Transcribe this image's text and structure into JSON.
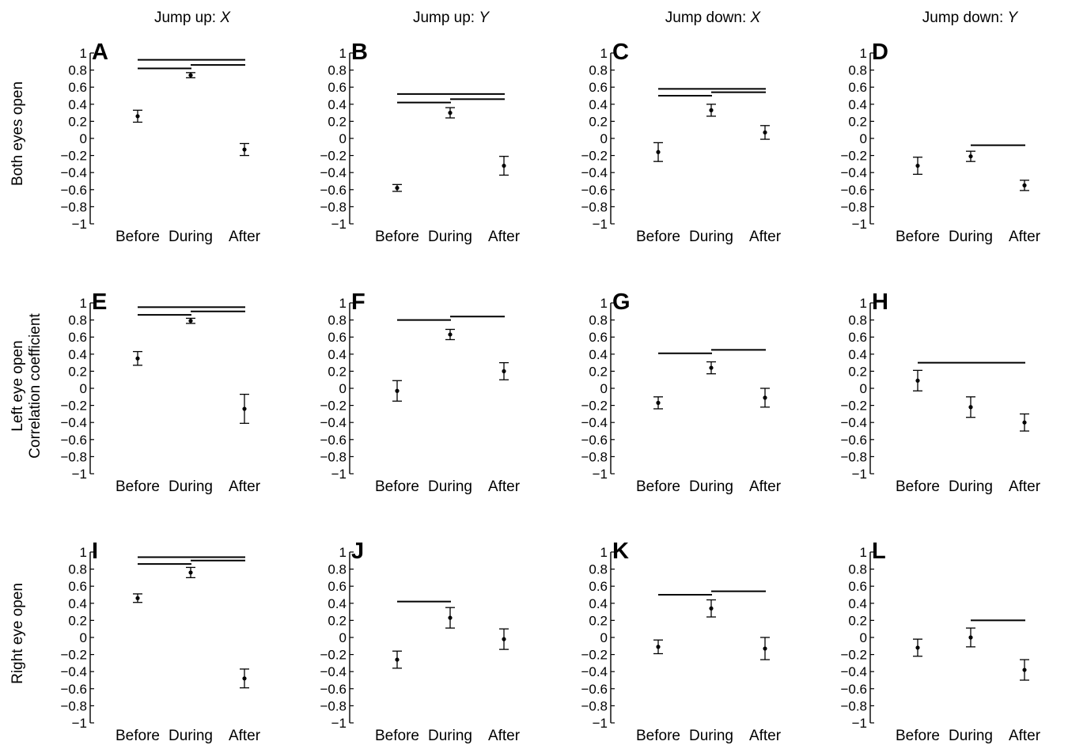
{
  "column_headers": [
    {
      "prefix": "Jump up: ",
      "var": "X"
    },
    {
      "prefix": "Jump up: ",
      "var": "Y"
    },
    {
      "prefix": "Jump down: ",
      "var": "X"
    },
    {
      "prefix": "Jump down: ",
      "var": "Y"
    }
  ],
  "row_labels": [
    "Both eyes open",
    "Left eye open",
    "Right eye open"
  ],
  "shared_ylabel": "Correlation coefficient",
  "colors": {
    "ink": "#000000",
    "background": "#ffffff"
  },
  "chart_data": [
    {
      "panel": "A",
      "type": "scatter",
      "categories": [
        "Before",
        "During",
        "After"
      ],
      "values": [
        0.26,
        0.74,
        -0.13
      ],
      "errors": [
        0.07,
        0.03,
        0.07
      ],
      "ylim": [
        -1,
        1
      ],
      "ticks": [
        "1",
        "0.8",
        "0.6",
        "0.4",
        "0.2",
        "0",
        "−0.2",
        "−0.4",
        "−0.6",
        "−0.8",
        "−1"
      ],
      "significance_lines": [
        {
          "from": "Before",
          "to": "During",
          "y": 0.82
        },
        {
          "from": "Before",
          "to": "After",
          "y": 0.92
        },
        {
          "from": "During",
          "to": "After",
          "y": 0.86
        }
      ]
    },
    {
      "panel": "B",
      "type": "scatter",
      "categories": [
        "Before",
        "During",
        "After"
      ],
      "values": [
        -0.58,
        0.3,
        -0.32
      ],
      "errors": [
        0.04,
        0.06,
        0.11
      ],
      "ylim": [
        -1,
        1
      ],
      "ticks": [
        "1",
        "0.8",
        "0.6",
        "0.4",
        "0.2",
        "0",
        "−0.2",
        "−0.4",
        "−0.6",
        "−0.8",
        "−1"
      ],
      "significance_lines": [
        {
          "from": "Before",
          "to": "During",
          "y": 0.42
        },
        {
          "from": "Before",
          "to": "After",
          "y": 0.52
        },
        {
          "from": "During",
          "to": "After",
          "y": 0.46
        }
      ]
    },
    {
      "panel": "C",
      "type": "scatter",
      "categories": [
        "Before",
        "During",
        "After"
      ],
      "values": [
        -0.16,
        0.33,
        0.07
      ],
      "errors": [
        0.11,
        0.07,
        0.08
      ],
      "ylim": [
        -1,
        1
      ],
      "ticks": [
        "1",
        "0.8",
        "0.6",
        "0.4",
        "0.2",
        "0",
        "−0.2",
        "−0.4",
        "−0.6",
        "−0.8",
        "−1"
      ],
      "significance_lines": [
        {
          "from": "Before",
          "to": "During",
          "y": 0.5
        },
        {
          "from": "Before",
          "to": "After",
          "y": 0.58
        },
        {
          "from": "During",
          "to": "After",
          "y": 0.54
        }
      ]
    },
    {
      "panel": "D",
      "type": "scatter",
      "categories": [
        "Before",
        "During",
        "After"
      ],
      "values": [
        -0.32,
        -0.21,
        -0.55
      ],
      "errors": [
        0.1,
        0.06,
        0.06
      ],
      "ylim": [
        -1,
        1
      ],
      "ticks": [
        "1",
        "0.8",
        "0.6",
        "0.4",
        "0.2",
        "0",
        "−0.2",
        "−0.4",
        "−0.6",
        "−0.8",
        "−1"
      ],
      "significance_lines": [
        {
          "from": "During",
          "to": "After",
          "y": -0.08
        }
      ]
    },
    {
      "panel": "E",
      "type": "scatter",
      "categories": [
        "Before",
        "During",
        "After"
      ],
      "values": [
        0.35,
        0.79,
        -0.24
      ],
      "errors": [
        0.08,
        0.03,
        0.17
      ],
      "ylim": [
        -1,
        1
      ],
      "ticks": [
        "1",
        "0.8",
        "0.6",
        "0.4",
        "0.2",
        "0",
        "−0.2",
        "−0.4",
        "−0.6",
        "−0.8",
        "−1"
      ],
      "significance_lines": [
        {
          "from": "Before",
          "to": "During",
          "y": 0.86
        },
        {
          "from": "Before",
          "to": "After",
          "y": 0.95
        },
        {
          "from": "During",
          "to": "After",
          "y": 0.9
        }
      ]
    },
    {
      "panel": "F",
      "type": "scatter",
      "categories": [
        "Before",
        "During",
        "After"
      ],
      "values": [
        -0.03,
        0.63,
        0.2
      ],
      "errors": [
        0.12,
        0.06,
        0.1
      ],
      "ylim": [
        -1,
        1
      ],
      "ticks": [
        "1",
        "0.8",
        "0.6",
        "0.4",
        "0.2",
        "0",
        "−0.2",
        "−0.4",
        "−0.6",
        "−0.8",
        "−1"
      ],
      "significance_lines": [
        {
          "from": "Before",
          "to": "During",
          "y": 0.8
        },
        {
          "from": "During",
          "to": "After",
          "y": 0.84
        }
      ]
    },
    {
      "panel": "G",
      "type": "scatter",
      "categories": [
        "Before",
        "During",
        "After"
      ],
      "values": [
        -0.17,
        0.24,
        -0.11
      ],
      "errors": [
        0.07,
        0.07,
        0.11
      ],
      "ylim": [
        -1,
        1
      ],
      "ticks": [
        "1",
        "0.8",
        "0.6",
        "0.4",
        "0.2",
        "0",
        "−0.2",
        "−0.4",
        "−0.6",
        "−0.8",
        "−1"
      ],
      "significance_lines": [
        {
          "from": "Before",
          "to": "During",
          "y": 0.41
        },
        {
          "from": "During",
          "to": "After",
          "y": 0.45
        }
      ]
    },
    {
      "panel": "H",
      "type": "scatter",
      "categories": [
        "Before",
        "During",
        "After"
      ],
      "values": [
        0.09,
        -0.22,
        -0.4
      ],
      "errors": [
        0.12,
        0.12,
        0.1
      ],
      "ylim": [
        -1,
        1
      ],
      "ticks": [
        "1",
        "0.8",
        "0.6",
        "0.4",
        "0.2",
        "0",
        "−0.2",
        "−0.4",
        "−0.6",
        "−0.8",
        "−1"
      ],
      "significance_lines": [
        {
          "from": "Before",
          "to": "After",
          "y": 0.3
        }
      ]
    },
    {
      "panel": "I",
      "type": "scatter",
      "categories": [
        "Before",
        "During",
        "After"
      ],
      "values": [
        0.46,
        0.76,
        -0.48
      ],
      "errors": [
        0.05,
        0.06,
        0.11
      ],
      "ylim": [
        -1,
        1
      ],
      "ticks": [
        "1",
        "0.8",
        "0.6",
        "0.4",
        "0.2",
        "0",
        "−0.2",
        "−0.4",
        "−0.6",
        "−0.8",
        "−1"
      ],
      "significance_lines": [
        {
          "from": "Before",
          "to": "During",
          "y": 0.86
        },
        {
          "from": "Before",
          "to": "After",
          "y": 0.94
        },
        {
          "from": "During",
          "to": "After",
          "y": 0.9
        }
      ]
    },
    {
      "panel": "J",
      "type": "scatter",
      "categories": [
        "Before",
        "During",
        "After"
      ],
      "values": [
        -0.26,
        0.23,
        -0.02
      ],
      "errors": [
        0.1,
        0.12,
        0.12
      ],
      "ylim": [
        -1,
        1
      ],
      "ticks": [
        "1",
        "0.8",
        "0.6",
        "0.4",
        "0.2",
        "0",
        "−0.2",
        "−0.4",
        "−0.6",
        "−0.8",
        "−1"
      ],
      "significance_lines": [
        {
          "from": "Before",
          "to": "During",
          "y": 0.42
        }
      ]
    },
    {
      "panel": "K",
      "type": "scatter",
      "categories": [
        "Before",
        "During",
        "After"
      ],
      "values": [
        -0.11,
        0.34,
        -0.13
      ],
      "errors": [
        0.08,
        0.1,
        0.13
      ],
      "ylim": [
        -1,
        1
      ],
      "ticks": [
        "1",
        "0.8",
        "0.6",
        "0.4",
        "0.2",
        "0",
        "−0.2",
        "−0.4",
        "−0.6",
        "−0.8",
        "−1"
      ],
      "significance_lines": [
        {
          "from": "Before",
          "to": "During",
          "y": 0.5
        },
        {
          "from": "During",
          "to": "After",
          "y": 0.54
        }
      ]
    },
    {
      "panel": "L",
      "type": "scatter",
      "categories": [
        "Before",
        "During",
        "After"
      ],
      "values": [
        -0.12,
        0.0,
        -0.38
      ],
      "errors": [
        0.1,
        0.11,
        0.12
      ],
      "ylim": [
        -1,
        1
      ],
      "ticks": [
        "1",
        "0.8",
        "0.6",
        "0.4",
        "0.2",
        "0",
        "−0.2",
        "−0.4",
        "−0.6",
        "−0.8",
        "−1"
      ],
      "significance_lines": [
        {
          "from": "During",
          "to": "After",
          "y": 0.2
        }
      ]
    }
  ]
}
